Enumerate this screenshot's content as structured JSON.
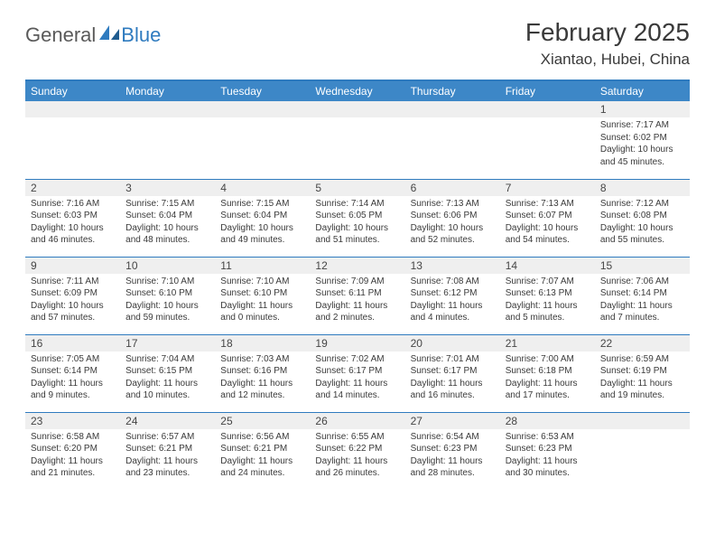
{
  "brand": {
    "general": "General",
    "blue": "Blue"
  },
  "title": "February 2025",
  "location": "Xiantao, Hubei, China",
  "colors": {
    "header_bg": "#3d87c7",
    "border": "#2f7bbf",
    "daynum_bg": "#efefef",
    "text": "#3a3a3a"
  },
  "weekdays": [
    "Sunday",
    "Monday",
    "Tuesday",
    "Wednesday",
    "Thursday",
    "Friday",
    "Saturday"
  ],
  "weeks": [
    [
      null,
      null,
      null,
      null,
      null,
      null,
      {
        "n": "1",
        "sr": "Sunrise: 7:17 AM",
        "ss": "Sunset: 6:02 PM",
        "dl": "Daylight: 10 hours and 45 minutes."
      }
    ],
    [
      {
        "n": "2",
        "sr": "Sunrise: 7:16 AM",
        "ss": "Sunset: 6:03 PM",
        "dl": "Daylight: 10 hours and 46 minutes."
      },
      {
        "n": "3",
        "sr": "Sunrise: 7:15 AM",
        "ss": "Sunset: 6:04 PM",
        "dl": "Daylight: 10 hours and 48 minutes."
      },
      {
        "n": "4",
        "sr": "Sunrise: 7:15 AM",
        "ss": "Sunset: 6:04 PM",
        "dl": "Daylight: 10 hours and 49 minutes."
      },
      {
        "n": "5",
        "sr": "Sunrise: 7:14 AM",
        "ss": "Sunset: 6:05 PM",
        "dl": "Daylight: 10 hours and 51 minutes."
      },
      {
        "n": "6",
        "sr": "Sunrise: 7:13 AM",
        "ss": "Sunset: 6:06 PM",
        "dl": "Daylight: 10 hours and 52 minutes."
      },
      {
        "n": "7",
        "sr": "Sunrise: 7:13 AM",
        "ss": "Sunset: 6:07 PM",
        "dl": "Daylight: 10 hours and 54 minutes."
      },
      {
        "n": "8",
        "sr": "Sunrise: 7:12 AM",
        "ss": "Sunset: 6:08 PM",
        "dl": "Daylight: 10 hours and 55 minutes."
      }
    ],
    [
      {
        "n": "9",
        "sr": "Sunrise: 7:11 AM",
        "ss": "Sunset: 6:09 PM",
        "dl": "Daylight: 10 hours and 57 minutes."
      },
      {
        "n": "10",
        "sr": "Sunrise: 7:10 AM",
        "ss": "Sunset: 6:10 PM",
        "dl": "Daylight: 10 hours and 59 minutes."
      },
      {
        "n": "11",
        "sr": "Sunrise: 7:10 AM",
        "ss": "Sunset: 6:10 PM",
        "dl": "Daylight: 11 hours and 0 minutes."
      },
      {
        "n": "12",
        "sr": "Sunrise: 7:09 AM",
        "ss": "Sunset: 6:11 PM",
        "dl": "Daylight: 11 hours and 2 minutes."
      },
      {
        "n": "13",
        "sr": "Sunrise: 7:08 AM",
        "ss": "Sunset: 6:12 PM",
        "dl": "Daylight: 11 hours and 4 minutes."
      },
      {
        "n": "14",
        "sr": "Sunrise: 7:07 AM",
        "ss": "Sunset: 6:13 PM",
        "dl": "Daylight: 11 hours and 5 minutes."
      },
      {
        "n": "15",
        "sr": "Sunrise: 7:06 AM",
        "ss": "Sunset: 6:14 PM",
        "dl": "Daylight: 11 hours and 7 minutes."
      }
    ],
    [
      {
        "n": "16",
        "sr": "Sunrise: 7:05 AM",
        "ss": "Sunset: 6:14 PM",
        "dl": "Daylight: 11 hours and 9 minutes."
      },
      {
        "n": "17",
        "sr": "Sunrise: 7:04 AM",
        "ss": "Sunset: 6:15 PM",
        "dl": "Daylight: 11 hours and 10 minutes."
      },
      {
        "n": "18",
        "sr": "Sunrise: 7:03 AM",
        "ss": "Sunset: 6:16 PM",
        "dl": "Daylight: 11 hours and 12 minutes."
      },
      {
        "n": "19",
        "sr": "Sunrise: 7:02 AM",
        "ss": "Sunset: 6:17 PM",
        "dl": "Daylight: 11 hours and 14 minutes."
      },
      {
        "n": "20",
        "sr": "Sunrise: 7:01 AM",
        "ss": "Sunset: 6:17 PM",
        "dl": "Daylight: 11 hours and 16 minutes."
      },
      {
        "n": "21",
        "sr": "Sunrise: 7:00 AM",
        "ss": "Sunset: 6:18 PM",
        "dl": "Daylight: 11 hours and 17 minutes."
      },
      {
        "n": "22",
        "sr": "Sunrise: 6:59 AM",
        "ss": "Sunset: 6:19 PM",
        "dl": "Daylight: 11 hours and 19 minutes."
      }
    ],
    [
      {
        "n": "23",
        "sr": "Sunrise: 6:58 AM",
        "ss": "Sunset: 6:20 PM",
        "dl": "Daylight: 11 hours and 21 minutes."
      },
      {
        "n": "24",
        "sr": "Sunrise: 6:57 AM",
        "ss": "Sunset: 6:21 PM",
        "dl": "Daylight: 11 hours and 23 minutes."
      },
      {
        "n": "25",
        "sr": "Sunrise: 6:56 AM",
        "ss": "Sunset: 6:21 PM",
        "dl": "Daylight: 11 hours and 24 minutes."
      },
      {
        "n": "26",
        "sr": "Sunrise: 6:55 AM",
        "ss": "Sunset: 6:22 PM",
        "dl": "Daylight: 11 hours and 26 minutes."
      },
      {
        "n": "27",
        "sr": "Sunrise: 6:54 AM",
        "ss": "Sunset: 6:23 PM",
        "dl": "Daylight: 11 hours and 28 minutes."
      },
      {
        "n": "28",
        "sr": "Sunrise: 6:53 AM",
        "ss": "Sunset: 6:23 PM",
        "dl": "Daylight: 11 hours and 30 minutes."
      },
      null
    ]
  ]
}
